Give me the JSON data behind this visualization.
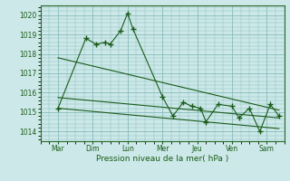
{
  "xlabel": "Pression niveau de la mer( hPa )",
  "bg_color": "#cce8e8",
  "grid_color": "#88bbbb",
  "line_color": "#1a5c1a",
  "xlim": [
    0,
    7
  ],
  "ylim": [
    1013.5,
    1020.5
  ],
  "yticks": [
    1014,
    1015,
    1016,
    1017,
    1018,
    1019,
    1020
  ],
  "xtick_labels": [
    "Mar",
    "Dim",
    "Lun",
    "Mer",
    "Jeu",
    "Ven",
    "Sam"
  ],
  "xtick_positions": [
    0.5,
    1.5,
    2.5,
    3.5,
    4.5,
    5.5,
    6.5
  ],
  "series1": {
    "x": [
      0.5,
      1.3,
      1.6,
      1.85,
      2.0,
      2.3,
      2.5,
      2.65,
      3.5,
      3.8,
      4.1,
      4.35,
      4.6,
      4.75,
      5.1,
      5.5,
      5.7,
      6.0,
      6.3,
      6.6,
      6.85
    ],
    "y": [
      1015.2,
      1018.8,
      1018.5,
      1018.6,
      1018.5,
      1019.2,
      1020.1,
      1019.3,
      1015.8,
      1014.8,
      1015.5,
      1015.3,
      1015.2,
      1014.5,
      1015.4,
      1015.3,
      1014.7,
      1015.2,
      1014.0,
      1015.4,
      1014.8
    ]
  },
  "trend1": {
    "x": [
      0.5,
      6.85
    ],
    "y": [
      1017.8,
      1015.1
    ]
  },
  "trend2": {
    "x": [
      0.5,
      6.85
    ],
    "y": [
      1015.75,
      1014.7
    ]
  },
  "trend3": {
    "x": [
      0.5,
      6.85
    ],
    "y": [
      1015.2,
      1014.15
    ]
  }
}
